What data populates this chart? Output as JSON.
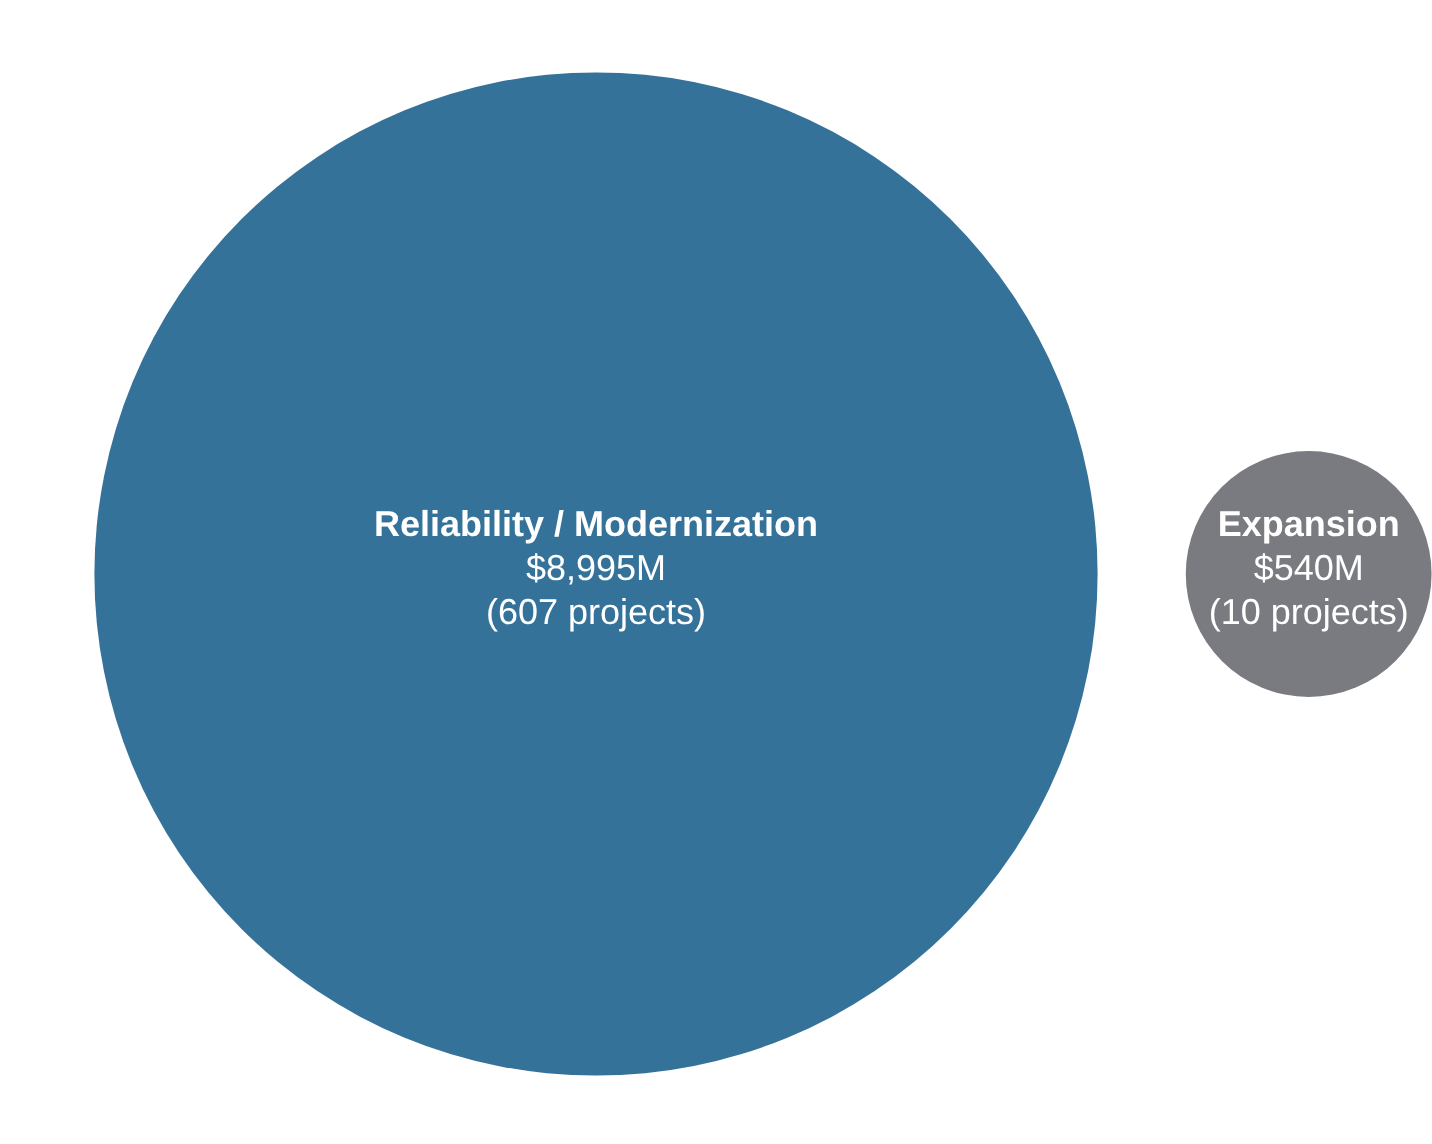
{
  "chart_data": {
    "type": "other",
    "categories": [
      "Reliability / Modernization",
      "Expansion"
    ],
    "values": [
      8995,
      540
    ],
    "value_labels": [
      "$8,995M",
      "$540M"
    ],
    "annotations": [
      "(607 projects)",
      "(10 projects)"
    ],
    "colors": [
      "#35729a",
      "#7a7b80"
    ]
  }
}
